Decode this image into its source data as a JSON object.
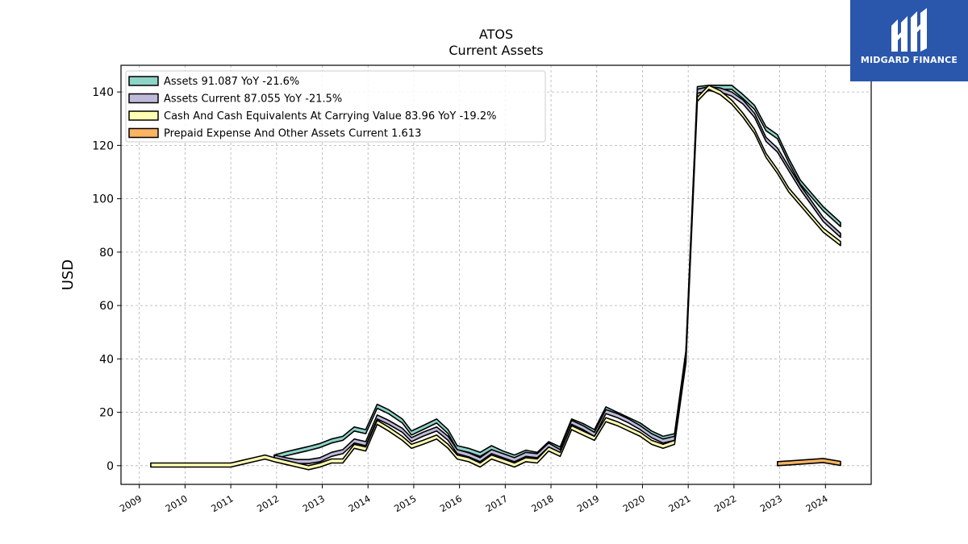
{
  "title": "ATOS",
  "subtitle": "Current  Assets",
  "logo": {
    "text": "MIDGARD FINANCE",
    "bg_color": "#2a57ac"
  },
  "chart_data": {
    "type": "area",
    "ylabel": "USD",
    "xlabel": "",
    "ylim": [
      -7,
      150
    ],
    "xlim": [
      2008.6,
      2025.0
    ],
    "yticks": [
      0,
      20,
      40,
      60,
      80,
      100,
      120,
      140
    ],
    "xticks": [
      "2009",
      "2010",
      "2011",
      "2012",
      "2013",
      "2014",
      "2015",
      "2016",
      "2017",
      "2018",
      "2019",
      "2020",
      "2021",
      "2022",
      "2023",
      "2024"
    ],
    "grid": true,
    "legend_position": "top-left",
    "series": [
      {
        "name": "Assets",
        "legend_label": "Assets  91.087 YoY -21.6%",
        "color": "#8dd3c7",
        "points": [
          [
            2011.95,
            4.0
          ],
          [
            2012.2,
            5.2
          ],
          [
            2012.45,
            6.2
          ],
          [
            2012.7,
            7.2
          ],
          [
            2012.95,
            8.3
          ],
          [
            2013.2,
            10.0
          ],
          [
            2013.45,
            11.0
          ],
          [
            2013.7,
            14.5
          ],
          [
            2013.95,
            13.5
          ],
          [
            2014.2,
            23.0
          ],
          [
            2014.45,
            21.0
          ],
          [
            2014.75,
            17.5
          ],
          [
            2014.95,
            13.0
          ],
          [
            2015.2,
            15.0
          ],
          [
            2015.5,
            17.5
          ],
          [
            2015.75,
            13.5
          ],
          [
            2015.95,
            7.5
          ],
          [
            2016.2,
            6.5
          ],
          [
            2016.45,
            5.0
          ],
          [
            2016.7,
            7.5
          ],
          [
            2016.95,
            5.5
          ],
          [
            2017.2,
            4.0
          ],
          [
            2017.45,
            5.8
          ],
          [
            2017.7,
            5.0
          ],
          [
            2017.95,
            9.0
          ],
          [
            2018.2,
            7.0
          ],
          [
            2018.45,
            17.5
          ],
          [
            2018.7,
            15.8
          ],
          [
            2018.95,
            13.5
          ],
          [
            2019.2,
            22.0
          ],
          [
            2019.45,
            20.0
          ],
          [
            2019.7,
            18.0
          ],
          [
            2019.95,
            16.0
          ],
          [
            2020.2,
            13.0
          ],
          [
            2020.45,
            11.0
          ],
          [
            2020.7,
            12.0
          ],
          [
            2020.95,
            43.0
          ],
          [
            2021.2,
            142.0
          ],
          [
            2021.45,
            142.5
          ],
          [
            2021.7,
            142.5
          ],
          [
            2021.95,
            142.5
          ],
          [
            2022.2,
            139.0
          ],
          [
            2022.45,
            135.0
          ],
          [
            2022.7,
            127.0
          ],
          [
            2022.95,
            124.0
          ],
          [
            2023.2,
            115.0
          ],
          [
            2023.45,
            107.0
          ],
          [
            2023.7,
            102.0
          ],
          [
            2023.95,
            97.0
          ],
          [
            2024.33,
            91.087
          ]
        ]
      },
      {
        "name": "Assets Current",
        "legend_label": "Assets Current  87.055 YoY -21.5%",
        "color": "#bebada",
        "points": [
          [
            2011.95,
            4.0
          ],
          [
            2012.2,
            3.0
          ],
          [
            2012.45,
            2.3
          ],
          [
            2012.7,
            2.3
          ],
          [
            2012.95,
            3.0
          ],
          [
            2013.2,
            5.0
          ],
          [
            2013.45,
            6.0
          ],
          [
            2013.7,
            10.0
          ],
          [
            2013.95,
            9.0
          ],
          [
            2014.2,
            19.0
          ],
          [
            2014.45,
            17.0
          ],
          [
            2014.75,
            14.0
          ],
          [
            2014.95,
            10.5
          ],
          [
            2015.2,
            12.5
          ],
          [
            2015.5,
            14.5
          ],
          [
            2015.75,
            11.0
          ],
          [
            2015.95,
            6.0
          ],
          [
            2016.2,
            4.8
          ],
          [
            2016.45,
            3.0
          ],
          [
            2016.7,
            6.0
          ],
          [
            2016.95,
            4.5
          ],
          [
            2017.2,
            3.0
          ],
          [
            2017.45,
            5.0
          ],
          [
            2017.7,
            4.5
          ],
          [
            2017.95,
            8.5
          ],
          [
            2018.2,
            6.0
          ],
          [
            2018.45,
            17.0
          ],
          [
            2018.7,
            15.0
          ],
          [
            2018.95,
            12.5
          ],
          [
            2019.2,
            21.0
          ],
          [
            2019.45,
            19.5
          ],
          [
            2019.7,
            17.5
          ],
          [
            2019.95,
            15.0
          ],
          [
            2020.2,
            12.0
          ],
          [
            2020.45,
            10.0
          ],
          [
            2020.7,
            11.0
          ],
          [
            2020.95,
            42.0
          ],
          [
            2021.2,
            141.0
          ],
          [
            2021.45,
            142.0
          ],
          [
            2021.7,
            141.5
          ],
          [
            2021.95,
            140.0
          ],
          [
            2022.2,
            137.0
          ],
          [
            2022.45,
            132.0
          ],
          [
            2022.7,
            123.0
          ],
          [
            2022.95,
            119.0
          ],
          [
            2023.2,
            112.0
          ],
          [
            2023.45,
            105.0
          ],
          [
            2023.7,
            99.0
          ],
          [
            2023.95,
            93.0
          ],
          [
            2024.33,
            87.055
          ]
        ]
      },
      {
        "name": "Cash And Cash Equivalents At Carrying Value",
        "legend_label": "Cash And Cash Equivalents At Carrying Value  83.96 YoY -19.2%",
        "color": "#ffffb3",
        "points": [
          [
            2009.25,
            1.0
          ],
          [
            2009.6,
            1.0
          ],
          [
            2010.0,
            1.0
          ],
          [
            2010.5,
            1.0
          ],
          [
            2011.0,
            1.0
          ],
          [
            2011.25,
            2.0
          ],
          [
            2011.5,
            3.0
          ],
          [
            2011.75,
            4.0
          ],
          [
            2011.95,
            3.0
          ],
          [
            2012.2,
            2.0
          ],
          [
            2012.45,
            1.0
          ],
          [
            2012.7,
            0.0
          ],
          [
            2012.95,
            1.0
          ],
          [
            2013.2,
            2.5
          ],
          [
            2013.45,
            2.5
          ],
          [
            2013.7,
            8.0
          ],
          [
            2013.95,
            7.0
          ],
          [
            2014.2,
            17.0
          ],
          [
            2014.45,
            14.5
          ],
          [
            2014.75,
            11.0
          ],
          [
            2014.95,
            8.0
          ],
          [
            2015.2,
            9.5
          ],
          [
            2015.5,
            11.5
          ],
          [
            2015.75,
            8.0
          ],
          [
            2015.95,
            4.0
          ],
          [
            2016.2,
            3.0
          ],
          [
            2016.45,
            1.0
          ],
          [
            2016.7,
            4.0
          ],
          [
            2016.95,
            2.5
          ],
          [
            2017.2,
            1.0
          ],
          [
            2017.45,
            3.0
          ],
          [
            2017.7,
            2.5
          ],
          [
            2017.95,
            7.0
          ],
          [
            2018.2,
            5.0
          ],
          [
            2018.45,
            15.0
          ],
          [
            2018.7,
            13.0
          ],
          [
            2018.95,
            11.0
          ],
          [
            2019.2,
            18.0
          ],
          [
            2019.45,
            16.5
          ],
          [
            2019.7,
            14.5
          ],
          [
            2019.95,
            12.5
          ],
          [
            2020.2,
            9.5
          ],
          [
            2020.45,
            8.0
          ],
          [
            2020.7,
            9.5
          ],
          [
            2020.95,
            40.0
          ],
          [
            2021.2,
            138.0
          ],
          [
            2021.45,
            142.5
          ],
          [
            2021.7,
            140.5
          ],
          [
            2021.95,
            137.0
          ],
          [
            2022.2,
            132.0
          ],
          [
            2022.45,
            126.0
          ],
          [
            2022.7,
            117.0
          ],
          [
            2022.95,
            111.0
          ],
          [
            2023.2,
            104.0
          ],
          [
            2023.45,
            99.0
          ],
          [
            2023.7,
            94.0
          ],
          [
            2023.95,
            89.0
          ],
          [
            2024.33,
            83.96
          ]
        ]
      },
      {
        "name": "Prepaid Expense And Other Assets Current",
        "legend_label": "Prepaid Expense And Other Assets Current  1.613",
        "color": "#fdb462",
        "points": [
          [
            2022.95,
            1.5
          ],
          [
            2023.2,
            1.8
          ],
          [
            2023.45,
            2.1
          ],
          [
            2023.7,
            2.4
          ],
          [
            2023.95,
            2.7
          ],
          [
            2024.33,
            1.613
          ]
        ]
      }
    ]
  }
}
